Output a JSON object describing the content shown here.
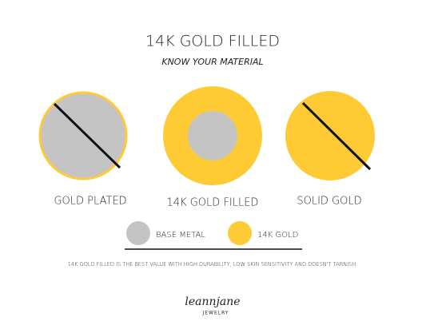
{
  "header": {
    "title": "14K GOLD FILLED",
    "subtitle": "KNOW YOUR MATERIAL"
  },
  "materials": [
    {
      "label": "GOLD PLATED"
    },
    {
      "label": "14K GOLD FILLED"
    },
    {
      "label": "SOLID GOLD"
    }
  ],
  "legend": [
    {
      "label": "BASE METAL"
    },
    {
      "label": "14K GOLD"
    }
  ],
  "footer": {
    "text": "14K GOLD FILLED IS THE BEST VALUE WITH HIGH DURABILITY, LOW SKIN SENSITIVITY AND DOESN'T TARNISH."
  },
  "logo": {
    "name": "leannjane",
    "tagline": "JEWELRY"
  }
}
